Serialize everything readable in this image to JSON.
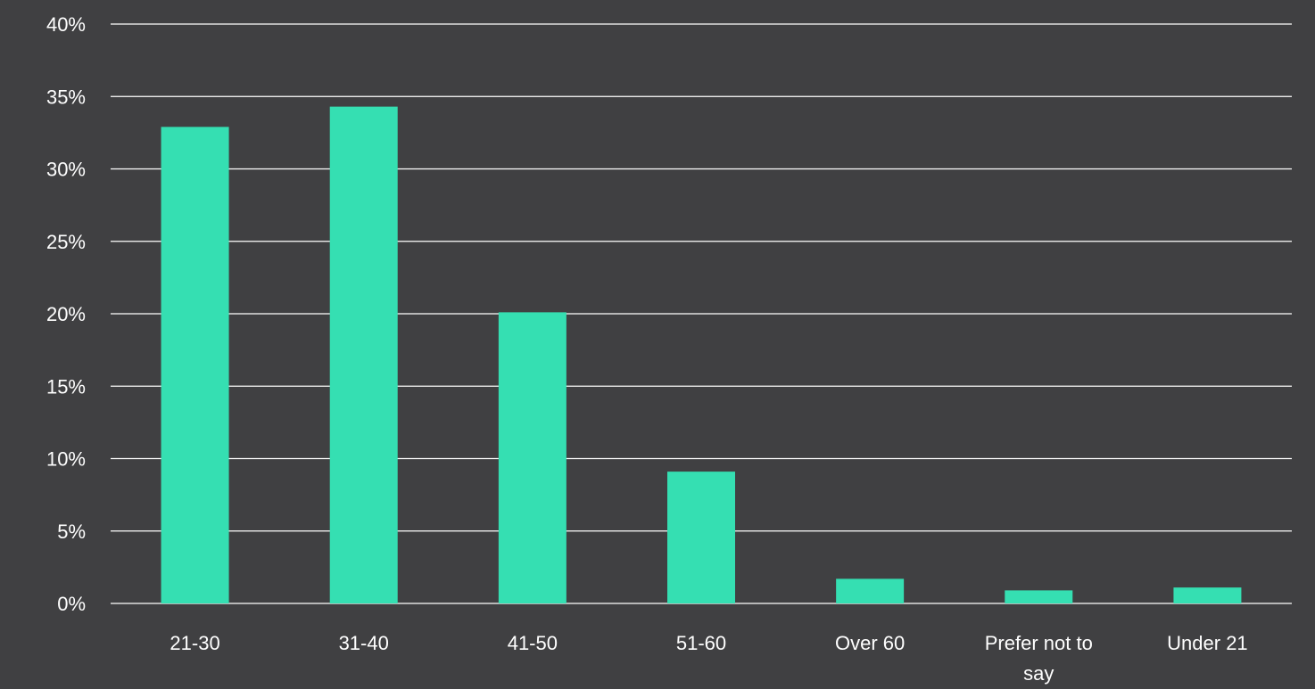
{
  "colors": {
    "background": "#404042",
    "bar": "#35DFB2",
    "gridline": "#FFFFFF",
    "text": "#FFFFFF"
  },
  "chart_data": {
    "type": "bar",
    "categories": [
      "21-30",
      "31-40",
      "41-50",
      "51-60",
      "Over 60",
      "Prefer not to say",
      "Under 21"
    ],
    "category_label_lines": [
      [
        "21-30"
      ],
      [
        "31-40"
      ],
      [
        "41-50"
      ],
      [
        "51-60"
      ],
      [
        "Over 60"
      ],
      [
        "Prefer not to",
        "say"
      ],
      [
        "Under 21"
      ]
    ],
    "values": [
      32.9,
      34.3,
      20.1,
      9.1,
      1.7,
      0.9,
      1.1
    ],
    "unit": "%",
    "ylim": [
      0,
      40
    ],
    "yticks": [
      0,
      5,
      10,
      15,
      20,
      25,
      30,
      35,
      40
    ],
    "ytick_labels": [
      "0%",
      "5%",
      "10%",
      "15%",
      "20%",
      "25%",
      "30%",
      "35%",
      "40%"
    ],
    "title": "",
    "xlabel": "",
    "ylabel": "",
    "grid": "horizontal",
    "legend": "none"
  }
}
